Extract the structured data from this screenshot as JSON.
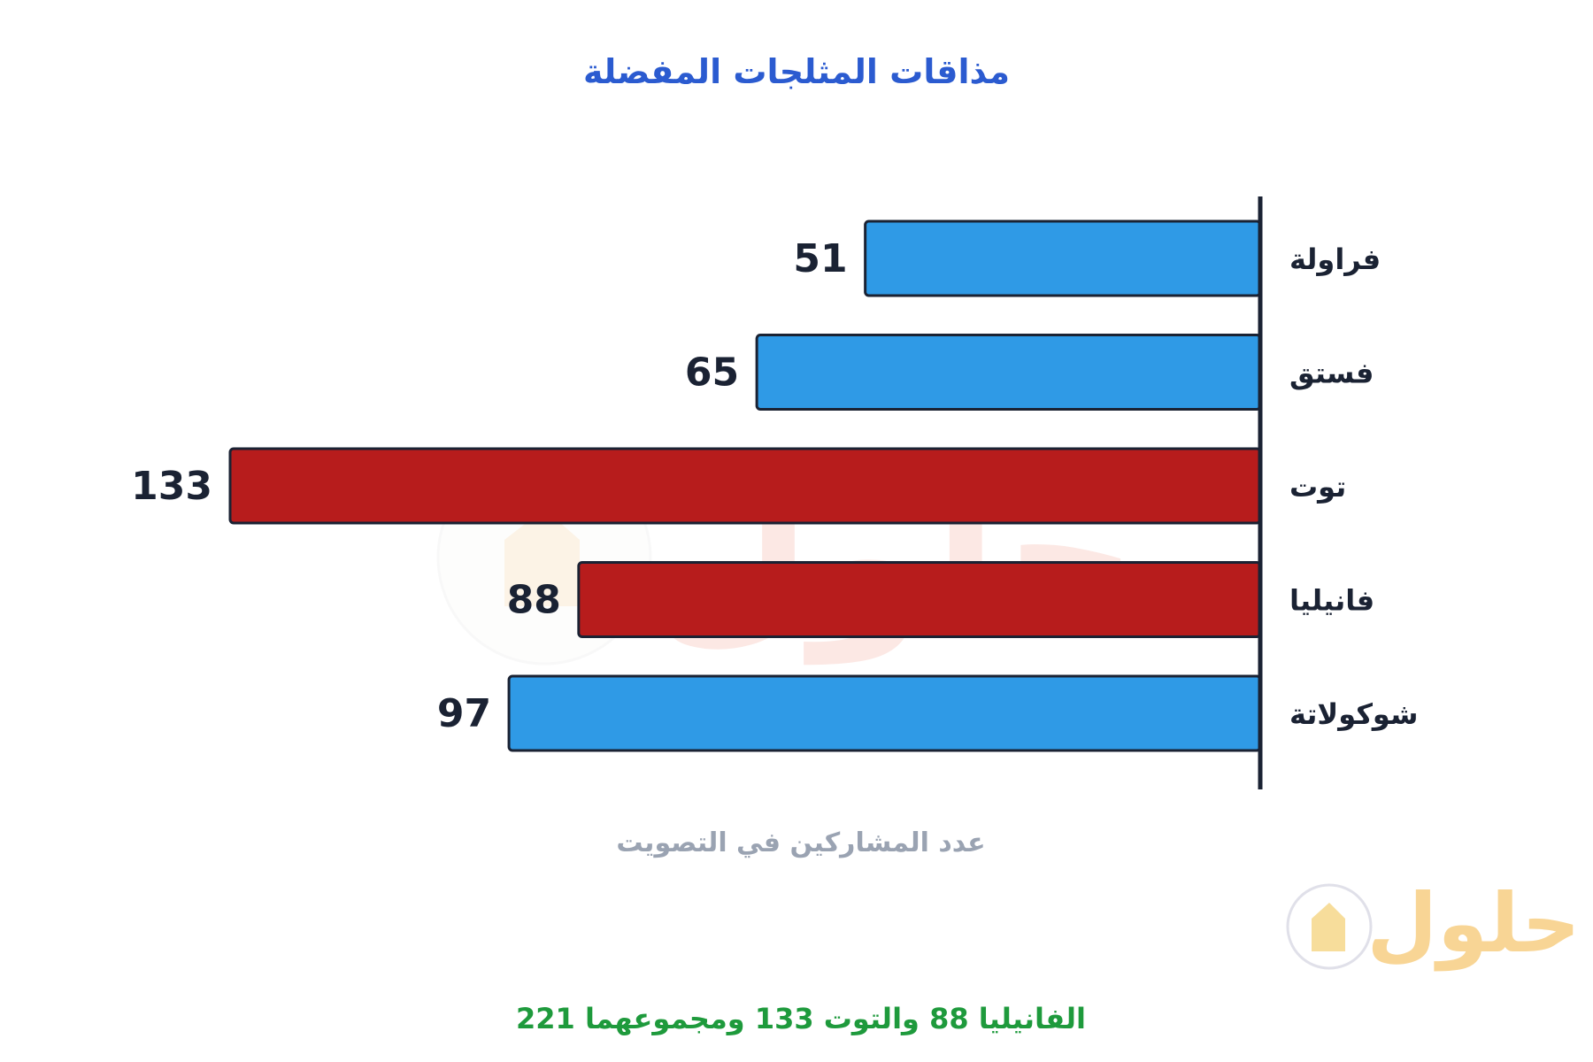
{
  "chart_data": {
    "type": "bar",
    "orientation": "horizontal",
    "title": "مذاقات المثلجات المفضلة",
    "xlabel": "عدد المشاركين في التصويت",
    "ylabel": "",
    "categories": [
      "فراولة",
      "فستق",
      "توت",
      "فانيليا",
      "شوكولاتة"
    ],
    "values": [
      51,
      65,
      133,
      88,
      97
    ],
    "bar_colors": [
      "#2f9ae6",
      "#2f9ae6",
      "#b71c1c",
      "#b71c1c",
      "#2f9ae6"
    ],
    "highlighted": [
      "توت",
      "فانيليا"
    ],
    "xlim": [
      0,
      133
    ],
    "grid": false,
    "legend": "none",
    "annotation": "الفانيليا 88 والتوت 133 ومجموعهما 221"
  },
  "colors": {
    "title": "#2b5bd0",
    "bar_default": "#2f9ae6",
    "bar_highlight": "#b71c1c",
    "bar_stroke": "#1a2233",
    "axis_line": "#1a2233",
    "axis_caption": "#9aa3b2",
    "annotation": "#1e9a3c"
  },
  "watermark": {
    "text": "حلول",
    "icon": "book-logo-icon"
  }
}
